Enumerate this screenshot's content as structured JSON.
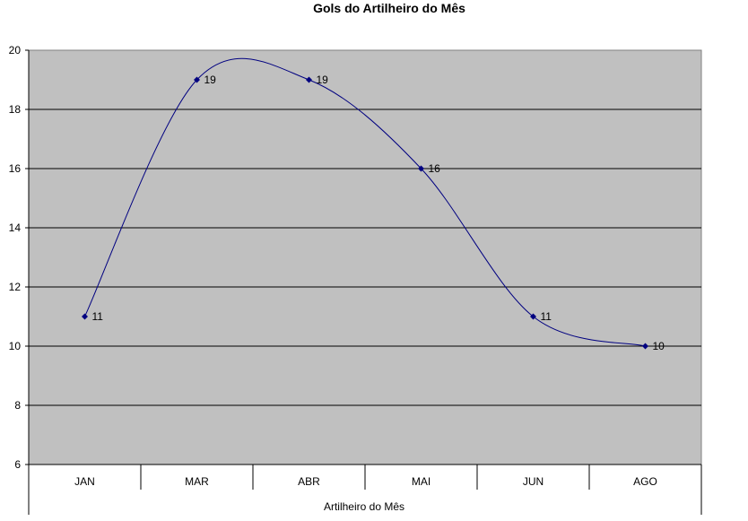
{
  "chart_data": {
    "type": "line",
    "title": "Gols do Artilheiro do Mês",
    "xlabel": "Artilheiro do Mês",
    "ylabel": "",
    "categories": [
      "JAN",
      "MAR",
      "ABR",
      "MAI",
      "JUN",
      "AGO"
    ],
    "series": [
      {
        "values": [
          11,
          19,
          19,
          16,
          11,
          10
        ]
      }
    ],
    "ylim": [
      6,
      20
    ],
    "yticks": [
      6,
      8,
      10,
      12,
      14,
      16,
      18,
      20
    ],
    "smooth": true,
    "grid": true,
    "legend": "none",
    "colors": {
      "plot_background": "#c0c0c0",
      "line": "#000080",
      "marker": "#000080",
      "gridline": "#000000"
    }
  }
}
